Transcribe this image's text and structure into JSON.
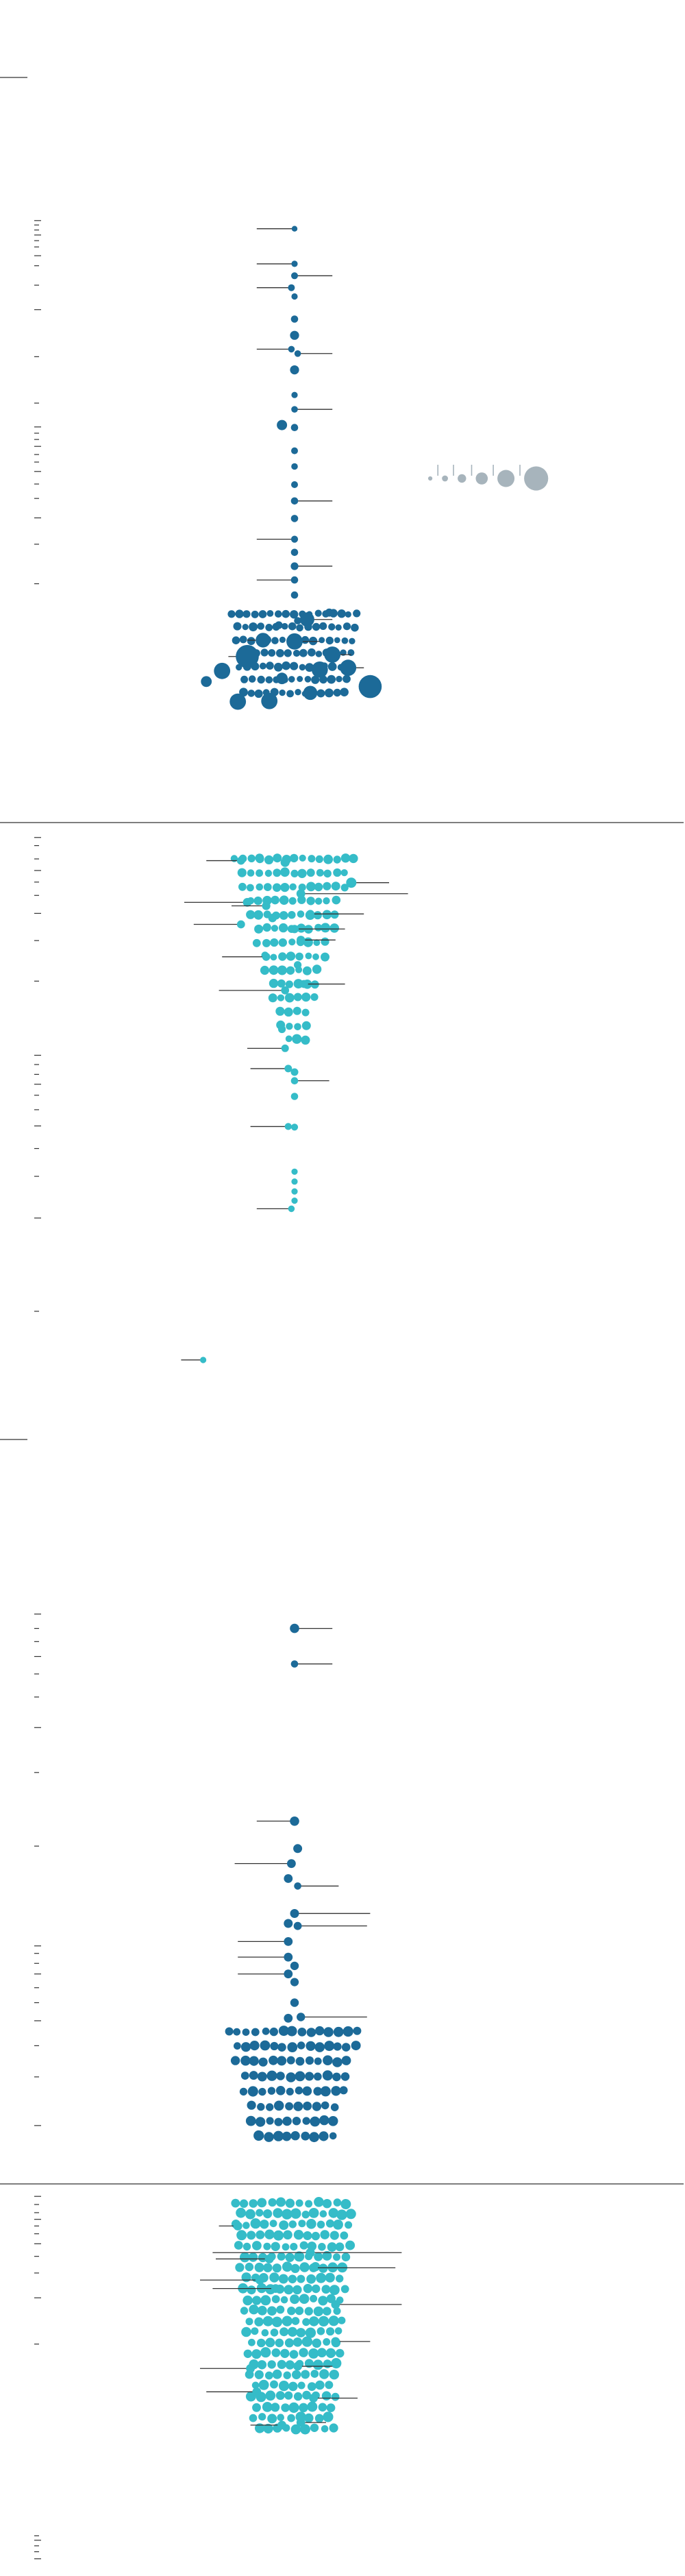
{
  "colors": {
    "dark": "#1c6a98",
    "light": "#35bcc8",
    "legend": "#a7b4bc",
    "rule": "#555555",
    "axis": "#333333",
    "whisker": "#333333"
  },
  "chart_data": [
    {
      "type": "scatter",
      "subtype": "beeswarm",
      "title": "",
      "xlabel": "",
      "ylabel": "",
      "ylim": [
        0,
        100
      ],
      "size_legend": {
        "values": [
          1,
          2,
          4,
          8,
          16,
          32
        ]
      },
      "panels": [
        {
          "name": "",
          "color": "dark",
          "ticks": [
            7.3,
            8.0,
            8.8,
            9.6,
            10.5,
            11.5,
            12.9,
            14.5,
            17.6,
            21.5,
            29.0,
            36.4,
            40.2,
            41.2,
            42.2,
            43.3,
            44.6,
            45.8,
            47.3,
            49.3,
            51.6,
            54.7,
            58.9,
            65.2
          ],
          "x_range": [
            0,
            1
          ],
          "points": [
            {
              "x": 0.5,
              "y": 8.6,
              "s": 1.0,
              "lo": 0.38,
              "hi": null
            },
            {
              "x": 0.5,
              "y": 14.2,
              "s": 1.2,
              "lo": 0.38,
              "hi": null
            },
            {
              "x": 0.5,
              "y": 16.1,
              "s": 1.4,
              "lo": null,
              "hi": 0.62
            },
            {
              "x": 0.49,
              "y": 18.0,
              "s": 1.4,
              "lo": 0.38,
              "hi": null
            },
            {
              "x": 0.5,
              "y": 19.4,
              "s": 1.2,
              "lo": null,
              "hi": null
            },
            {
              "x": 0.5,
              "y": 23.0,
              "s": 1.6,
              "lo": null,
              "hi": null
            },
            {
              "x": 0.5,
              "y": 25.6,
              "s": 2.5,
              "lo": null,
              "hi": null
            },
            {
              "x": 0.49,
              "y": 27.8,
              "s": 1.3,
              "lo": 0.38,
              "hi": null
            },
            {
              "x": 0.51,
              "y": 28.5,
              "s": 1.3,
              "lo": null,
              "hi": 0.62
            },
            {
              "x": 0.5,
              "y": 31.1,
              "s": 2.5,
              "lo": null,
              "hi": null
            },
            {
              "x": 0.5,
              "y": 35.1,
              "s": 1.2,
              "lo": null,
              "hi": null
            },
            {
              "x": 0.5,
              "y": 37.4,
              "s": 1.3,
              "lo": null,
              "hi": 0.62
            },
            {
              "x": 0.46,
              "y": 39.9,
              "s": 3.2,
              "lo": null,
              "hi": null
            },
            {
              "x": 0.5,
              "y": 40.3,
              "s": 1.6,
              "lo": null,
              "hi": null
            },
            {
              "x": 0.5,
              "y": 44.0,
              "s": 1.4,
              "lo": null,
              "hi": null
            },
            {
              "x": 0.5,
              "y": 46.5,
              "s": 1.3,
              "lo": null,
              "hi": null
            },
            {
              "x": 0.5,
              "y": 49.4,
              "s": 1.4,
              "lo": null,
              "hi": null
            },
            {
              "x": 0.5,
              "y": 52.0,
              "s": 1.6,
              "lo": null,
              "hi": 0.62
            },
            {
              "x": 0.5,
              "y": 54.8,
              "s": 1.6,
              "lo": null,
              "hi": null
            },
            {
              "x": 0.5,
              "y": 58.1,
              "s": 1.5,
              "lo": 0.38,
              "hi": null
            },
            {
              "x": 0.5,
              "y": 60.2,
              "s": 1.6,
              "lo": null,
              "hi": null
            },
            {
              "x": 0.5,
              "y": 62.4,
              "s": 1.8,
              "lo": null,
              "hi": 0.62
            },
            {
              "x": 0.5,
              "y": 64.6,
              "s": 1.6,
              "lo": 0.38,
              "hi": null
            },
            {
              "x": 0.5,
              "y": 67.0,
              "s": 1.6,
              "lo": null,
              "hi": null
            },
            {
              "x": 0.51,
              "y": 71.1,
              "s": 1.6,
              "lo": null,
              "hi": null
            },
            {
              "x": 0.45,
              "y": 71.8,
              "s": 1.8,
              "lo": null,
              "hi": null
            },
            {
              "x": 0.54,
              "y": 70.9,
              "s": 6.2,
              "lo": null,
              "hi": 0.62
            },
            {
              "x": 0.61,
              "y": 69.8,
              "s": 2.0,
              "lo": null,
              "hi": null
            },
            {
              "x": 0.4,
              "y": 74.2,
              "s": 6.5,
              "lo": 0.35,
              "hi": null
            },
            {
              "x": 0.5,
              "y": 74.4,
              "s": 8.0,
              "lo": null,
              "hi": 0.58
            },
            {
              "x": 0.35,
              "y": 76.8,
              "s": 16.0,
              "lo": 0.29,
              "hi": null
            },
            {
              "x": 0.62,
              "y": 76.5,
              "s": 8.0,
              "lo": null,
              "hi": 0.68
            },
            {
              "x": 0.67,
              "y": 78.6,
              "s": 8.0,
              "lo": null,
              "hi": 0.72
            },
            {
              "x": 0.27,
              "y": 79.1,
              "s": 8.0,
              "lo": null,
              "hi": null
            },
            {
              "x": 0.58,
              "y": 78.9,
              "s": 8.0,
              "lo": null,
              "hi": null
            },
            {
              "x": 0.74,
              "y": 81.6,
              "s": 16.0,
              "lo": null,
              "hi": null
            },
            {
              "x": 0.32,
              "y": 84.0,
              "s": 8.0,
              "lo": null,
              "hi": null
            },
            {
              "x": 0.42,
              "y": 83.9,
              "s": 8.0,
              "lo": null,
              "hi": null
            },
            {
              "x": 0.22,
              "y": 80.8,
              "s": 3.5,
              "lo": null,
              "hi": null
            },
            {
              "x": 0.55,
              "y": 82.6,
              "s": 6.0,
              "lo": null,
              "hi": null
            },
            {
              "x": 0.46,
              "y": 80.3,
              "s": 4.0,
              "lo": null,
              "hi": null
            }
          ],
          "swarm": {
            "rows": 7,
            "row_start": 70.0,
            "row_step": 2.1,
            "spread": 0.2,
            "taper": 0.006,
            "size": 1.6,
            "seed": 11
          }
        },
        {
          "name": "",
          "color": "light",
          "ticks": [
            0.8,
            2.2,
            4.5,
            6.5,
            8.5,
            10.8,
            13.9,
            18.6,
            25.6,
            38.4,
            40.0,
            41.7,
            43.4,
            45.3,
            47.8,
            50.6,
            54.5,
            59.3,
            66.5,
            82.6
          ],
          "x_range": [
            0,
            1
          ],
          "points": [
            {
              "x": 0.33,
              "y": 4.8,
              "s": 2.0,
              "lo": 0.22,
              "hi": null
            },
            {
              "x": 0.39,
              "y": 4.5,
              "s": 2.2,
              "lo": null,
              "hi": null
            },
            {
              "x": 0.47,
              "y": 5.1,
              "s": 2.5,
              "lo": null,
              "hi": null
            },
            {
              "x": 0.68,
              "y": 8.6,
              "s": 3.2,
              "lo": null,
              "hi": 0.8
            },
            {
              "x": 0.52,
              "y": 10.5,
              "s": 2.3,
              "lo": null,
              "hi": 0.86
            },
            {
              "x": 0.35,
              "y": 12.0,
              "s": 2.3,
              "lo": 0.15,
              "hi": null
            },
            {
              "x": 0.41,
              "y": 12.6,
              "s": 2.1,
              "lo": 0.3,
              "hi": null
            },
            {
              "x": 0.33,
              "y": 15.8,
              "s": 2.0,
              "lo": 0.18,
              "hi": null
            },
            {
              "x": 0.43,
              "y": 14.7,
              "s": 2.2,
              "lo": null,
              "hi": null
            },
            {
              "x": 0.5,
              "y": 16.6,
              "s": 2.1,
              "lo": null,
              "hi": 0.66
            },
            {
              "x": 0.52,
              "y": 18.5,
              "s": 2.2,
              "lo": null,
              "hi": 0.63
            },
            {
              "x": 0.55,
              "y": 14.0,
              "s": 2.0,
              "lo": null,
              "hi": 0.72
            },
            {
              "x": 0.41,
              "y": 21.4,
              "s": 2.0,
              "lo": 0.27,
              "hi": null
            },
            {
              "x": 0.51,
              "y": 22.8,
              "s": 1.8,
              "lo": null,
              "hi": null
            },
            {
              "x": 0.47,
              "y": 27.2,
              "s": 2.0,
              "lo": 0.26,
              "hi": null
            },
            {
              "x": 0.53,
              "y": 26.1,
              "s": 2.0,
              "lo": null,
              "hi": 0.66
            },
            {
              "x": 0.46,
              "y": 33.9,
              "s": 1.8,
              "lo": null,
              "hi": null
            },
            {
              "x": 0.47,
              "y": 37.2,
              "s": 1.7,
              "lo": 0.35,
              "hi": null
            },
            {
              "x": 0.48,
              "y": 40.7,
              "s": 1.7,
              "lo": 0.36,
              "hi": null
            },
            {
              "x": 0.5,
              "y": 41.3,
              "s": 1.7,
              "lo": null,
              "hi": null
            },
            {
              "x": 0.5,
              "y": 42.8,
              "s": 1.6,
              "lo": null,
              "hi": 0.61
            },
            {
              "x": 0.5,
              "y": 45.5,
              "s": 1.6,
              "lo": null,
              "hi": null
            },
            {
              "x": 0.48,
              "y": 50.7,
              "s": 1.5,
              "lo": 0.36,
              "hi": null
            },
            {
              "x": 0.5,
              "y": 50.8,
              "s": 1.5,
              "lo": null,
              "hi": null
            },
            {
              "x": 0.5,
              "y": 58.5,
              "s": 1.2,
              "lo": null,
              "hi": null
            },
            {
              "x": 0.5,
              "y": 60.2,
              "s": 1.2,
              "lo": null,
              "hi": null
            },
            {
              "x": 0.5,
              "y": 61.9,
              "s": 1.2,
              "lo": null,
              "hi": null
            },
            {
              "x": 0.5,
              "y": 63.5,
              "s": 1.2,
              "lo": null,
              "hi": null
            },
            {
              "x": 0.49,
              "y": 64.9,
              "s": 1.3,
              "lo": 0.38,
              "hi": null
            },
            {
              "x": 0.21,
              "y": 91.0,
              "s": 1.2,
              "lo": 0.14,
              "hi": null
            }
          ],
          "swarm": {
            "rows": 14,
            "row_start": 4.5,
            "row_step": 2.4,
            "spread": 0.19,
            "taper": 0.012,
            "size": 1.9,
            "seed": 29
          }
        },
        {
          "name": "",
          "color": "dark",
          "ticks": [
            12.6,
            14.9,
            17.0,
            19.4,
            22.2,
            25.9,
            30.8,
            38.0,
            49.8,
            65.8,
            67.0,
            68.6,
            70.3,
            72.5,
            74.9,
            77.8,
            81.8,
            86.8,
            94.6
          ],
          "x_range": [
            0,
            1
          ],
          "points": [
            {
              "x": 0.5,
              "y": 14.9,
              "s": 2.6,
              "lo": null,
              "hi": 0.62
            },
            {
              "x": 0.5,
              "y": 20.6,
              "s": 1.6,
              "lo": null,
              "hi": 0.62
            },
            {
              "x": 0.5,
              "y": 45.8,
              "s": 2.6,
              "lo": 0.38,
              "hi": null
            },
            {
              "x": 0.51,
              "y": 50.2,
              "s": 2.4,
              "lo": null,
              "hi": null
            },
            {
              "x": 0.49,
              "y": 52.6,
              "s": 2.3,
              "lo": 0.31,
              "hi": null
            },
            {
              "x": 0.48,
              "y": 55.0,
              "s": 2.3,
              "lo": null,
              "hi": null
            },
            {
              "x": 0.51,
              "y": 56.2,
              "s": 1.6,
              "lo": null,
              "hi": 0.64
            },
            {
              "x": 0.5,
              "y": 60.6,
              "s": 2.4,
              "lo": null,
              "hi": 0.74
            },
            {
              "x": 0.48,
              "y": 62.2,
              "s": 2.4,
              "lo": null,
              "hi": null
            },
            {
              "x": 0.51,
              "y": 62.6,
              "s": 2.0,
              "lo": null,
              "hi": 0.73
            },
            {
              "x": 0.48,
              "y": 65.1,
              "s": 2.3,
              "lo": 0.32,
              "hi": null
            },
            {
              "x": 0.48,
              "y": 67.6,
              "s": 2.3,
              "lo": 0.32,
              "hi": null
            },
            {
              "x": 0.5,
              "y": 69.0,
              "s": 2.2,
              "lo": null,
              "hi": null
            },
            {
              "x": 0.48,
              "y": 70.3,
              "s": 2.3,
              "lo": 0.32,
              "hi": null
            },
            {
              "x": 0.5,
              "y": 71.6,
              "s": 2.1,
              "lo": null,
              "hi": null
            },
            {
              "x": 0.5,
              "y": 74.9,
              "s": 2.2,
              "lo": null,
              "hi": null
            },
            {
              "x": 0.48,
              "y": 77.4,
              "s": 2.3,
              "lo": null,
              "hi": null
            },
            {
              "x": 0.52,
              "y": 77.2,
              "s": 2.2,
              "lo": null,
              "hi": 0.73
            }
          ],
          "swarm": {
            "rows": 8,
            "row_start": 79.5,
            "row_step": 2.4,
            "spread": 0.21,
            "taper": 0.012,
            "size": 2.2,
            "seed": 43
          }
        },
        {
          "name": "",
          "color": "light",
          "ticks": [
            1.7,
            3.9,
            6.1,
            7.9,
            9.7,
            11.8,
            14.5,
            17.9,
            22.4,
            29.1,
            41.6,
            93.4,
            94.6,
            96.1,
            97.7,
            99.6
          ],
          "x_range": [
            0,
            1
          ],
          "points": [
            {
              "x": 0.32,
              "y": 9.7,
              "s": 2.4,
              "lo": 0.26,
              "hi": null
            },
            {
              "x": 0.55,
              "y": 16.9,
              "s": 2.5,
              "lo": 0.24,
              "hi": 0.84
            },
            {
              "x": 0.42,
              "y": 18.6,
              "s": 2.4,
              "lo": 0.25,
              "hi": null
            },
            {
              "x": 0.56,
              "y": 21.0,
              "s": 2.4,
              "lo": null,
              "hi": 0.82
            },
            {
              "x": 0.39,
              "y": 24.3,
              "s": 2.4,
              "lo": 0.2,
              "hi": null
            },
            {
              "x": 0.44,
              "y": 26.6,
              "s": 2.3,
              "lo": 0.24,
              "hi": null
            },
            {
              "x": 0.63,
              "y": 30.9,
              "s": 2.3,
              "lo": null,
              "hi": 0.84
            },
            {
              "x": 0.63,
              "y": 40.9,
              "s": 2.3,
              "lo": null,
              "hi": 0.74
            },
            {
              "x": 0.36,
              "y": 48.2,
              "s": 2.3,
              "lo": 0.2,
              "hi": null
            },
            {
              "x": 0.51,
              "y": 47.6,
              "s": 2.3,
              "lo": null,
              "hi": 0.62
            },
            {
              "x": 0.38,
              "y": 54.5,
              "s": 2.3,
              "lo": 0.22,
              "hi": null
            },
            {
              "x": 0.56,
              "y": 56.2,
              "s": 2.3,
              "lo": null,
              "hi": 0.7
            },
            {
              "x": 0.46,
              "y": 63.5,
              "s": 2.3,
              "lo": 0.36,
              "hi": null
            },
            {
              "x": 0.52,
              "y": 62.8,
              "s": 2.3,
              "lo": null,
              "hi": 0.6
            }
          ],
          "swarm": {
            "rows": 22,
            "row_start": 3.5,
            "row_step": 2.9,
            "spread": 0.19,
            "taper": 0.003,
            "size": 2.25,
            "seed": 67
          }
        }
      ]
    }
  ]
}
